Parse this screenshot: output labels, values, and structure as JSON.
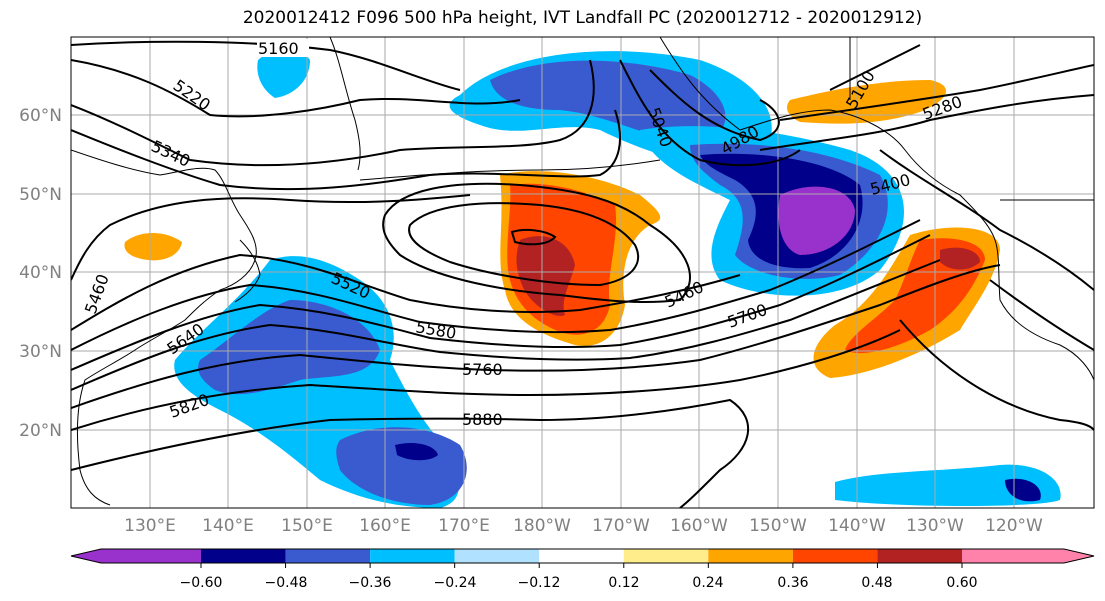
{
  "title": "2020012412 F096 500 hPa height, IVT Landfall PC (2020012712 - 2020012912)",
  "lon_labels": [
    "130°E",
    "140°E",
    "150°E",
    "160°E",
    "170°E",
    "180°W",
    "170°W",
    "160°W",
    "150°W",
    "140°W",
    "130°W",
    "120°W"
  ],
  "lat_labels": [
    "60°N",
    "50°N",
    "40°N",
    "30°N",
    "20°N"
  ],
  "height_contour_labels": [
    "5160",
    "5220",
    "5340",
    "5460",
    "5520",
    "5580",
    "5640",
    "5760",
    "5820",
    "5880",
    "5460",
    "5700",
    "5400",
    "5280",
    "5100",
    "4980",
    "5040"
  ],
  "colorbar": {
    "tick_labels": [
      "−0.60",
      "−0.48",
      "−0.36",
      "−0.24",
      "−0.12",
      "0.12",
      "0.24",
      "0.36",
      "0.48",
      "0.60"
    ],
    "colors": [
      "#9932cc",
      "#00008b",
      "#3a5bd0",
      "#00bfff",
      "#b0e2ff",
      "#ffffff",
      "#ffec8b",
      "#ffa500",
      "#ff4500",
      "#b22222",
      "#ff82ab"
    ]
  },
  "colors": {
    "contour": "#000000",
    "grid": "#aaaaaa",
    "coast": "#000000",
    "lat_label": "#808080",
    "lon_label": "#808080"
  }
}
